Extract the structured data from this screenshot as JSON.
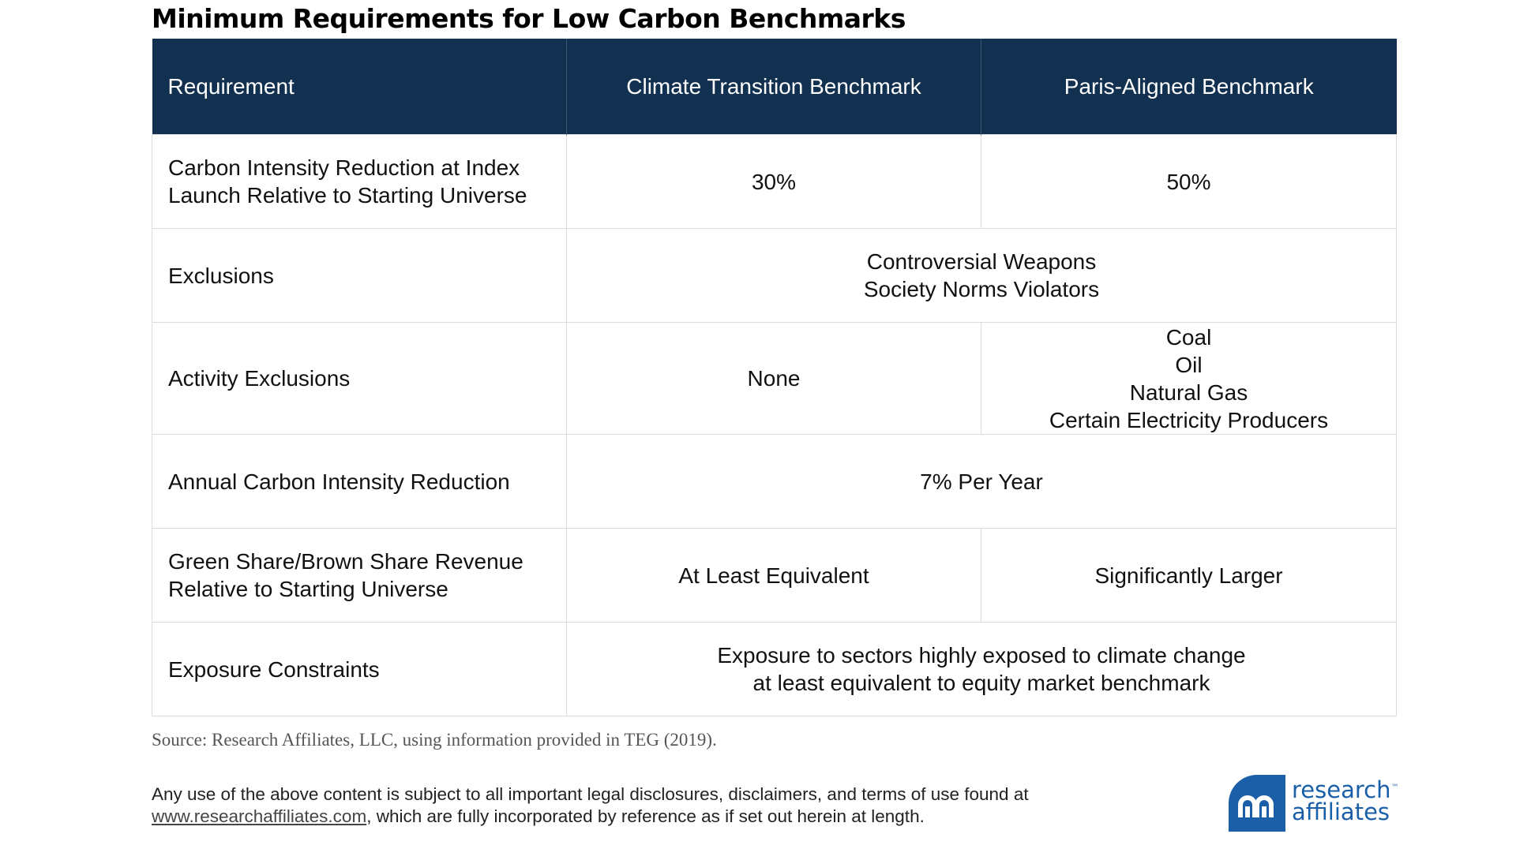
{
  "title": "Minimum Requirements for Low Carbon Benchmarks",
  "table": {
    "headers": [
      "Requirement",
      "Climate Transition Benchmark",
      "Paris-Aligned Benchmark"
    ],
    "rows": [
      {
        "requirement": [
          "Carbon Intensity Reduction at Index",
          "Launch Relative to Starting Universe"
        ],
        "ctb": [
          "30%"
        ],
        "pab": [
          "50%"
        ]
      },
      {
        "requirement": [
          "Exclusions"
        ],
        "both": [
          "Controversial Weapons",
          "Society Norms Violators"
        ]
      },
      {
        "requirement": [
          "Activity Exclusions"
        ],
        "ctb": [
          "None"
        ],
        "pab": [
          "Coal",
          "Oil",
          "Natural Gas",
          "Certain Electricity Producers"
        ]
      },
      {
        "requirement": [
          "Annual Carbon Intensity Reduction"
        ],
        "both": [
          "7% Per Year"
        ]
      },
      {
        "requirement": [
          "Green Share/Brown Share Revenue",
          "Relative to Starting Universe"
        ],
        "ctb": [
          "At Least Equivalent"
        ],
        "pab": [
          "Significantly Larger"
        ]
      },
      {
        "requirement": [
          "Exposure Constraints"
        ],
        "both": [
          "Exposure to sectors highly exposed to climate change",
          "at least equivalent to equity market benchmark"
        ]
      }
    ]
  },
  "source": "Source: Research Affiliates, LLC, using information provided in TEG (2019).",
  "disclaimer": {
    "line1": "Any use of the above content is subject to all important legal disclosures, disclaimers, and terms of use found at",
    "link": "www.researchaffiliates.com",
    "line2_rest": ", which are fully incorporated by reference as if set out herein at length."
  },
  "logo": {
    "line1": "research",
    "tm": "™",
    "line2": "affiliates",
    "icon": "research-affiliates-logo-mark",
    "color": "#1b5fa8"
  },
  "colors": {
    "header_bg": "#12304f",
    "grid_line": "#dcdcdc"
  }
}
